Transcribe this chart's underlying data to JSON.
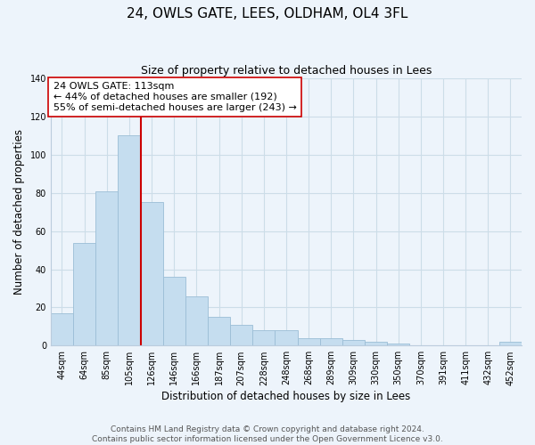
{
  "title": "24, OWLS GATE, LEES, OLDHAM, OL4 3FL",
  "subtitle": "Size of property relative to detached houses in Lees",
  "xlabel": "Distribution of detached houses by size in Lees",
  "ylabel": "Number of detached properties",
  "categories": [
    "44sqm",
    "64sqm",
    "85sqm",
    "105sqm",
    "126sqm",
    "146sqm",
    "166sqm",
    "187sqm",
    "207sqm",
    "228sqm",
    "248sqm",
    "268sqm",
    "289sqm",
    "309sqm",
    "330sqm",
    "350sqm",
    "370sqm",
    "391sqm",
    "411sqm",
    "432sqm",
    "452sqm"
  ],
  "values": [
    17,
    54,
    81,
    110,
    75,
    36,
    26,
    15,
    11,
    8,
    8,
    4,
    4,
    3,
    2,
    1,
    0,
    0,
    0,
    0,
    2
  ],
  "bar_color": "#c5ddef",
  "bar_edge_color": "#9bbdd6",
  "vline_x_index": 3.5,
  "vline_color": "#cc0000",
  "annotation_text": "24 OWLS GATE: 113sqm\n← 44% of detached houses are smaller (192)\n55% of semi-detached houses are larger (243) →",
  "annotation_box_color": "#ffffff",
  "annotation_box_edge_color": "#cc0000",
  "ylim": [
    0,
    140
  ],
  "yticks": [
    0,
    20,
    40,
    60,
    80,
    100,
    120,
    140
  ],
  "grid_color": "#ccdde8",
  "background_color": "#edf4fb",
  "footer_line1": "Contains HM Land Registry data © Crown copyright and database right 2024.",
  "footer_line2": "Contains public sector information licensed under the Open Government Licence v3.0.",
  "title_fontsize": 11,
  "subtitle_fontsize": 9,
  "xlabel_fontsize": 8.5,
  "ylabel_fontsize": 8.5,
  "tick_fontsize": 7,
  "annotation_fontsize": 8,
  "footer_fontsize": 6.5
}
